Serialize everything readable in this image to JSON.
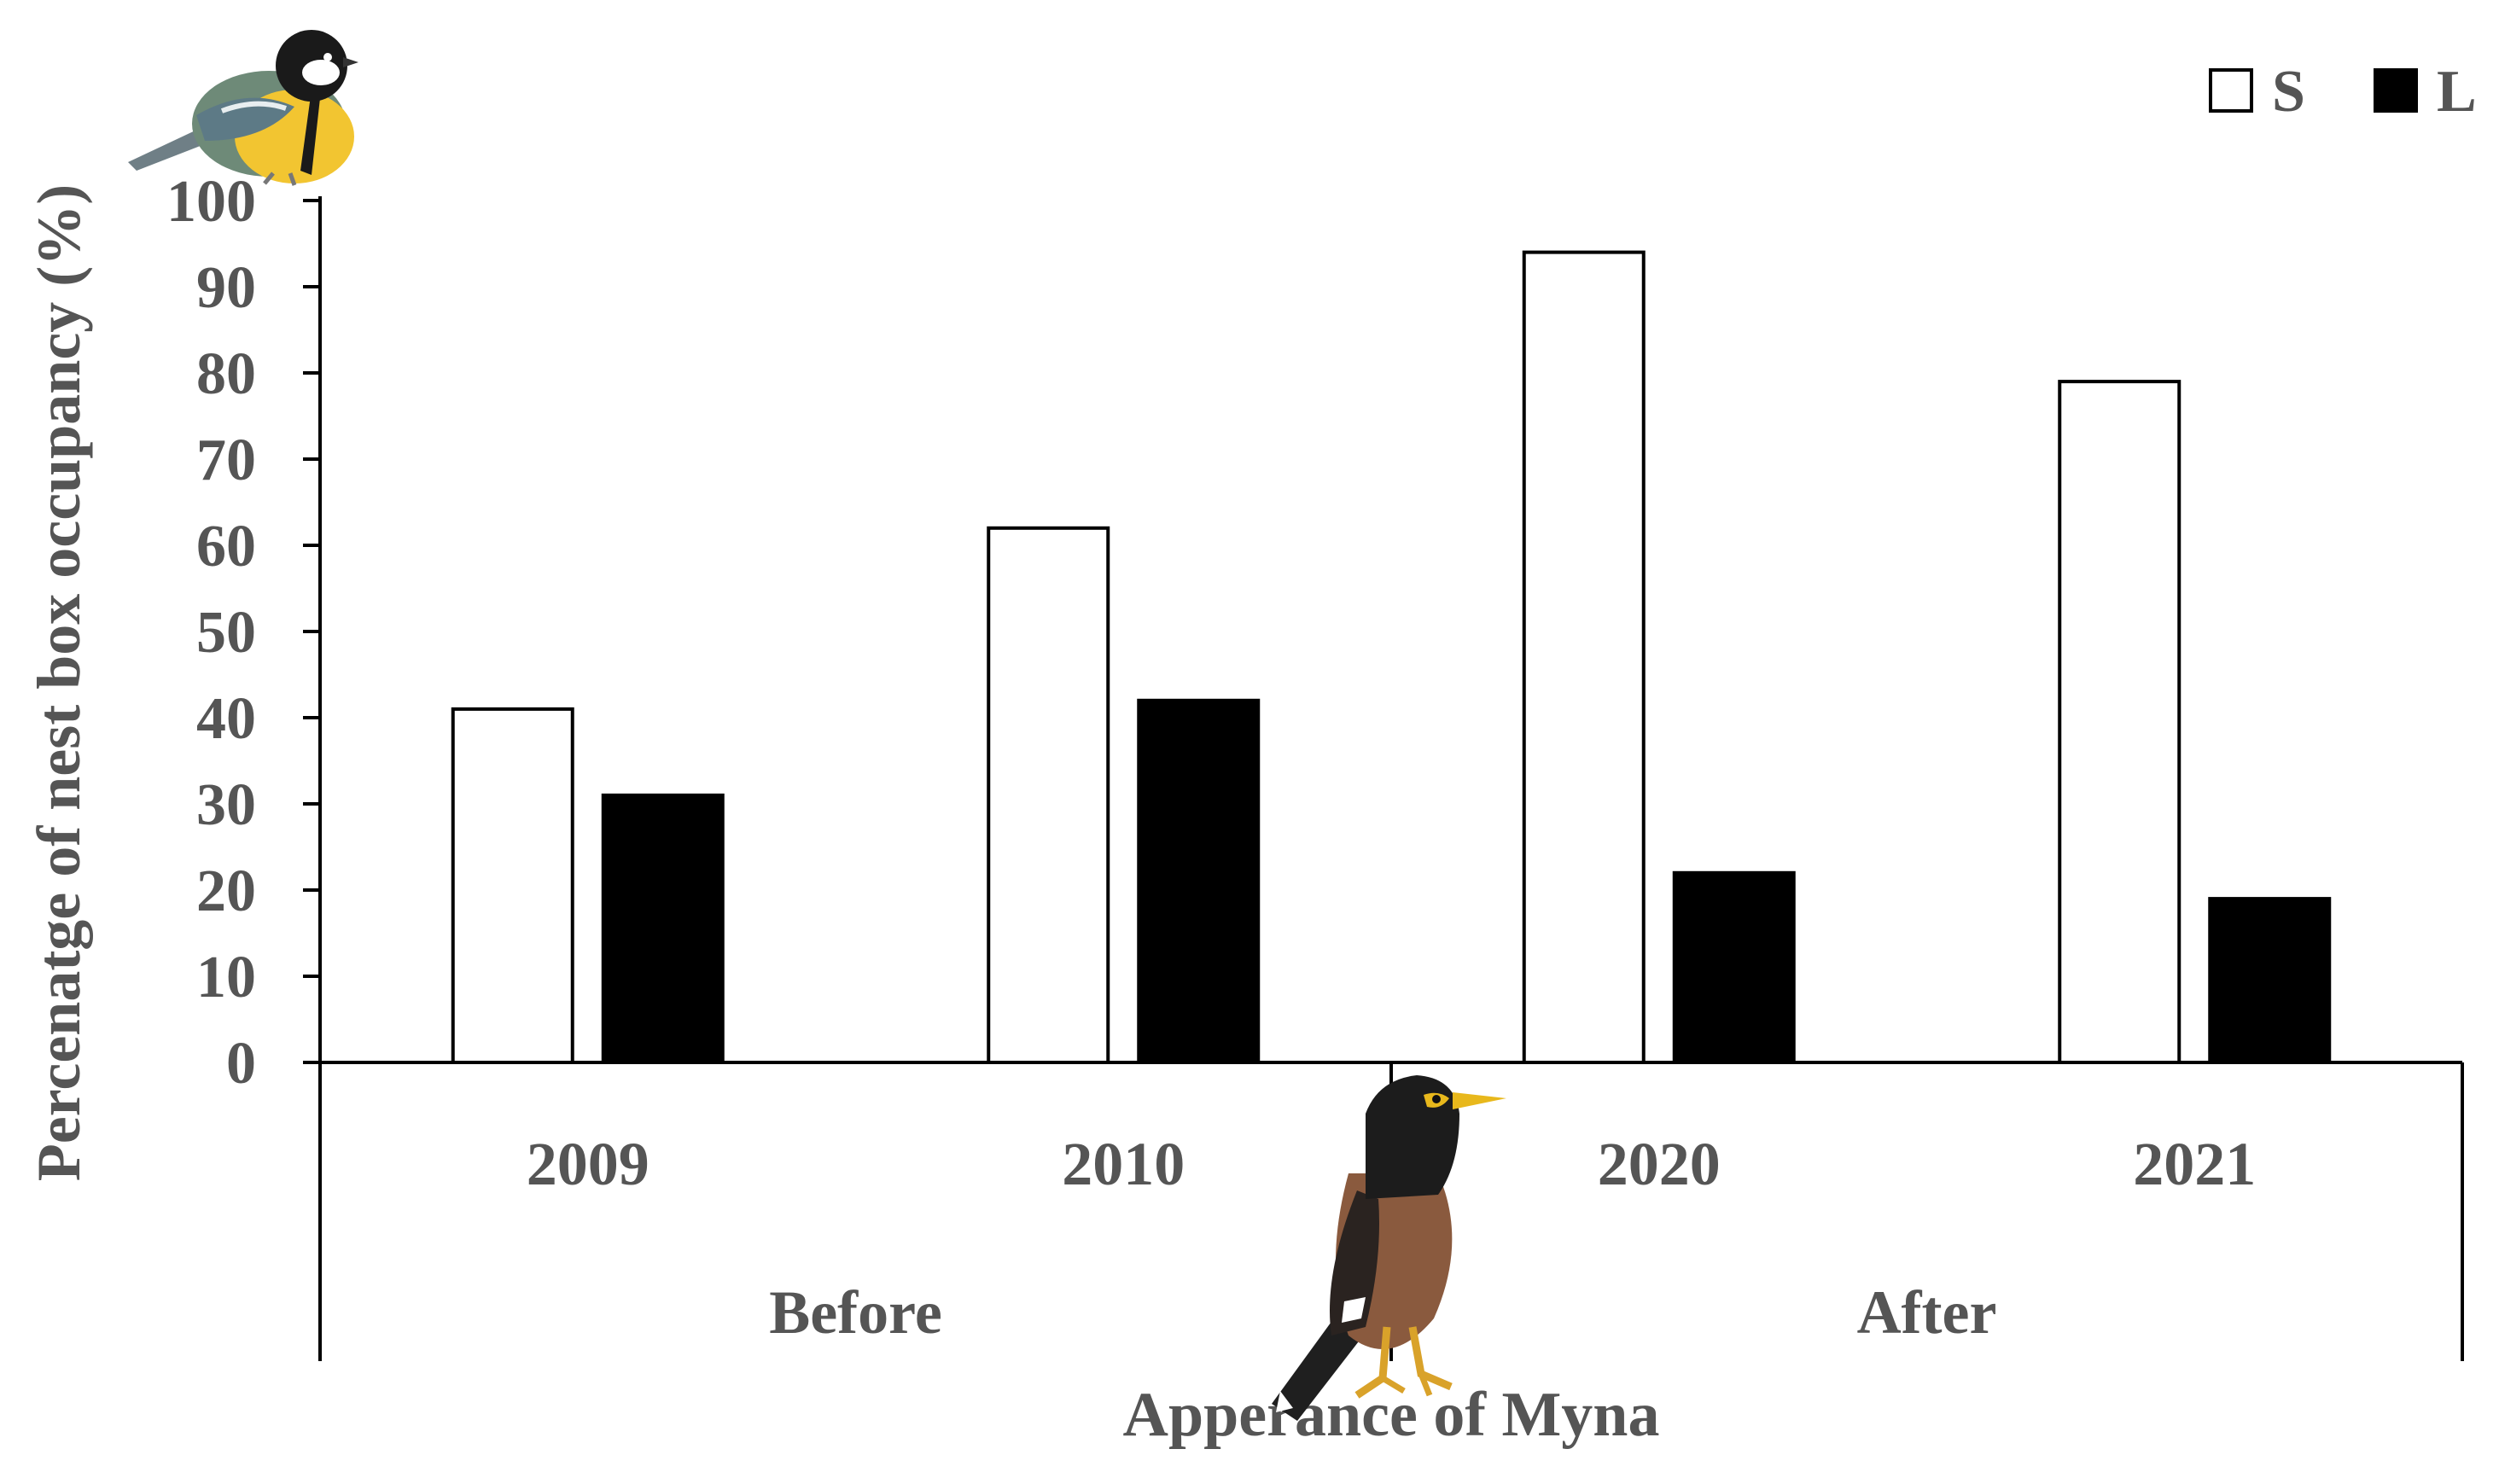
{
  "chart_data": {
    "type": "bar",
    "ylabel": "Percenatge of  nest box occupancy  (%)",
    "xlabel": "Apperance of Myna",
    "ylim": [
      0,
      100
    ],
    "yticks": [
      "0",
      "10",
      "20",
      "30",
      "40",
      "50",
      "60",
      "70",
      "80",
      "90",
      "100"
    ],
    "categories": [
      "2009",
      "2010",
      "2020",
      "2021"
    ],
    "groups": [
      {
        "label": "Before",
        "categories": [
          "2009",
          "2010"
        ]
      },
      {
        "label": "After",
        "categories": [
          "2020",
          "2021"
        ]
      }
    ],
    "series": [
      {
        "name": "S",
        "color": "#ffffff",
        "values": [
          41,
          62,
          94,
          79
        ]
      },
      {
        "name": "L",
        "color": "#000000",
        "values": [
          31,
          42,
          22,
          19
        ]
      }
    ],
    "grid": false,
    "legend_position": "top-right",
    "images": [
      "great-tit-bird",
      "common-myna-bird"
    ]
  }
}
